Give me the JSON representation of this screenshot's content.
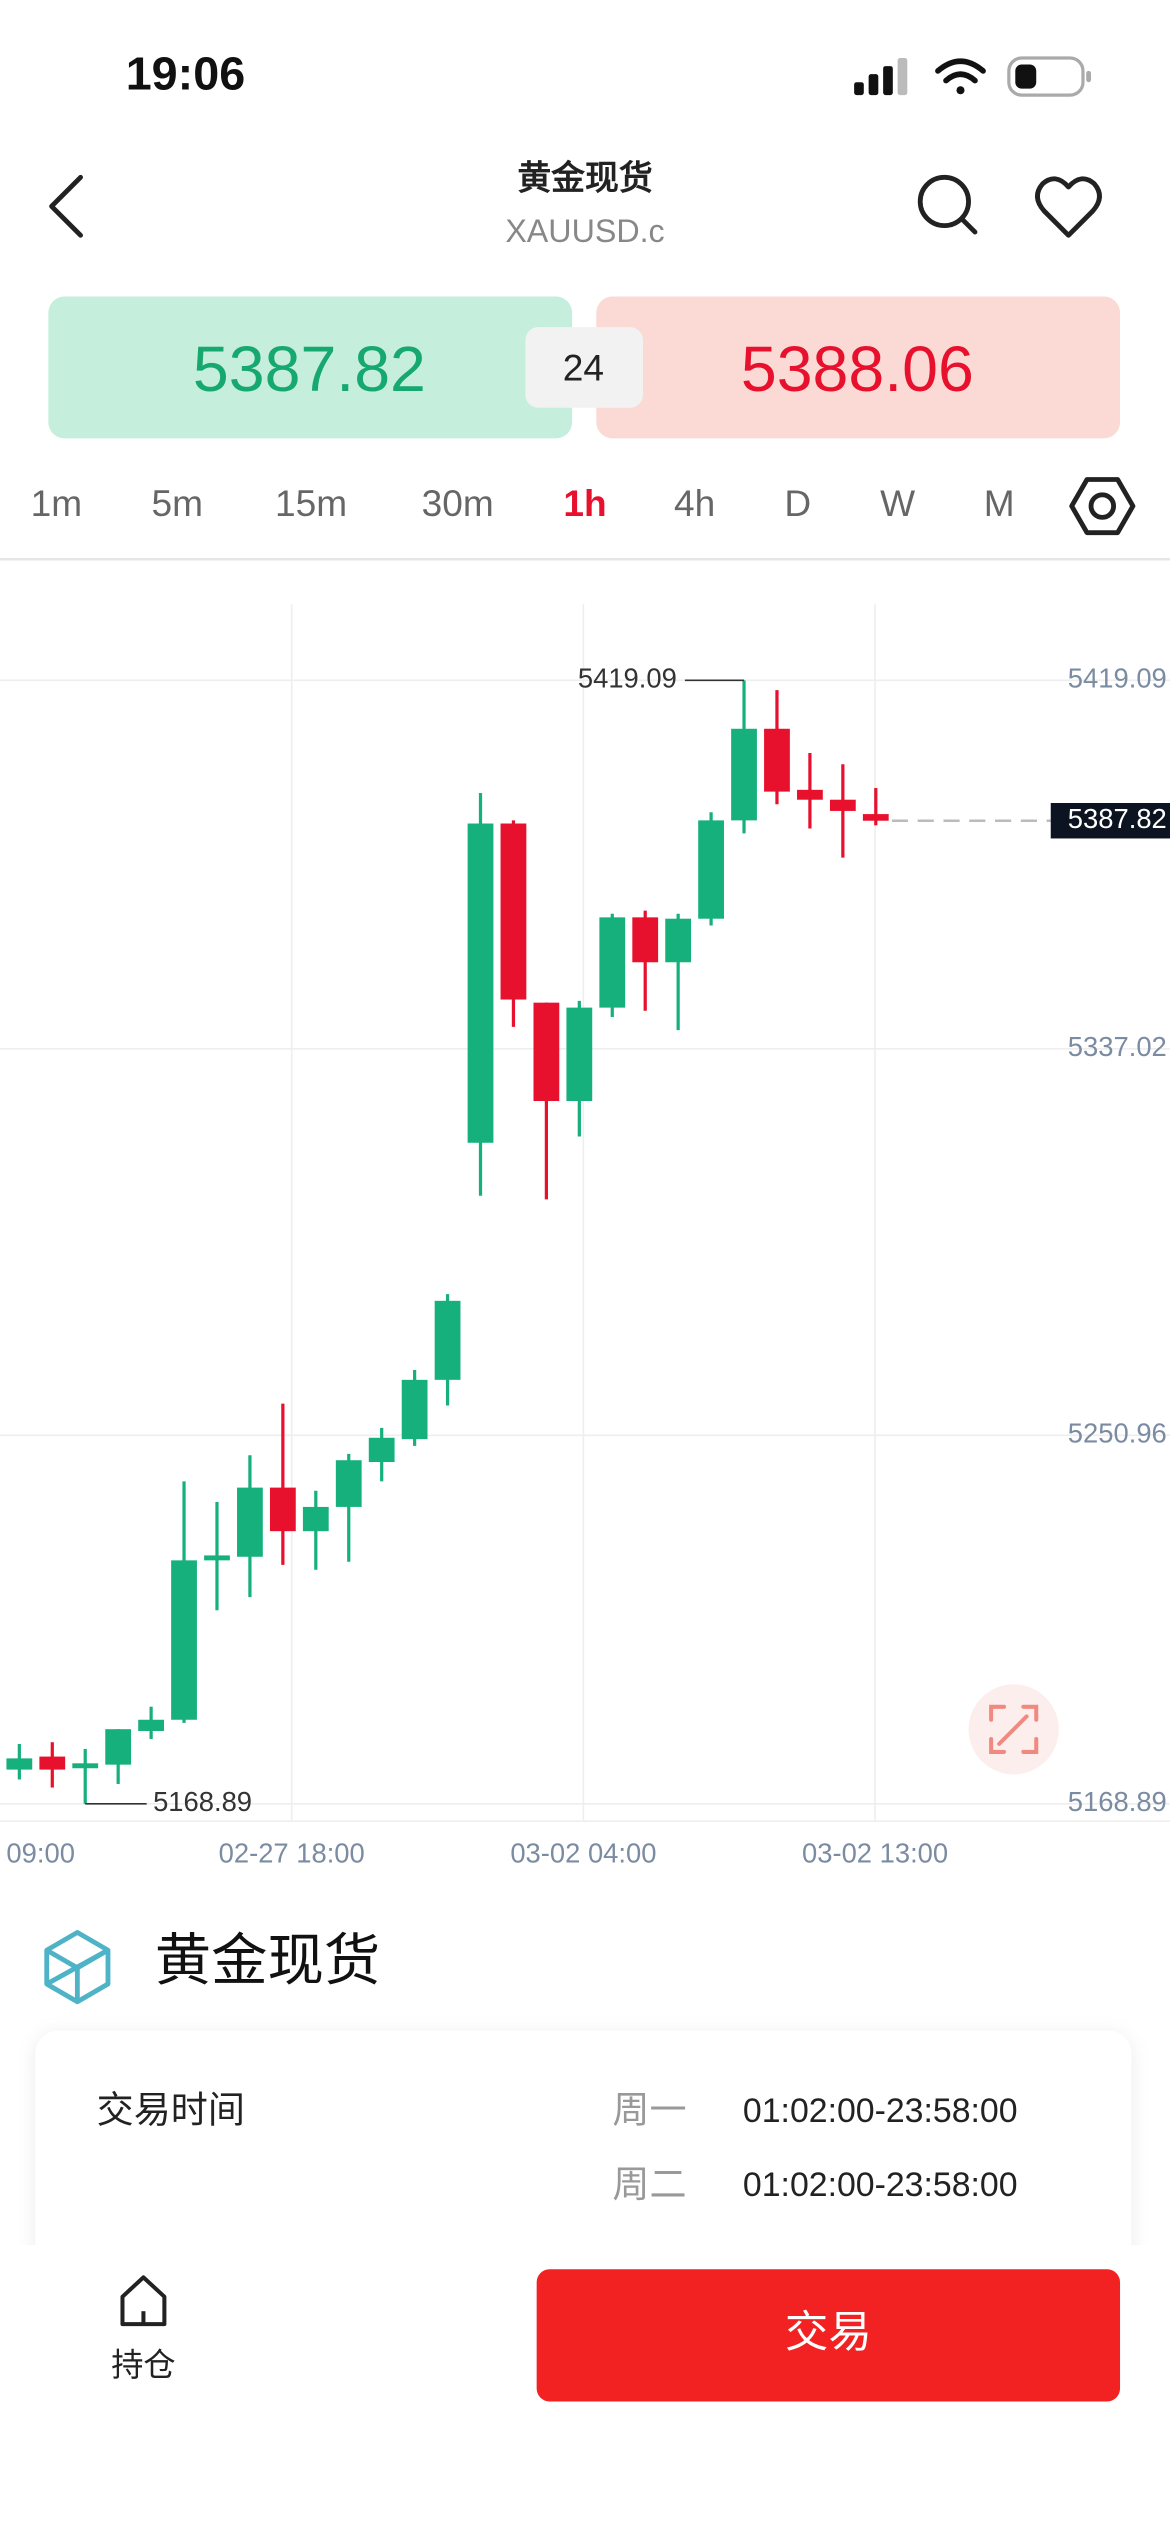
{
  "status_bar": {
    "time": "19:06"
  },
  "header": {
    "title": "黄金现货",
    "subtitle": "XAUUSD.c"
  },
  "quote": {
    "bid": 5387.82,
    "spread": 24,
    "ask": 5388.06
  },
  "timeframes": {
    "items": [
      "1m",
      "5m",
      "15m",
      "30m",
      "1h",
      "4h",
      "D",
      "W",
      "M"
    ],
    "active": "1h"
  },
  "chart_data": {
    "type": "candlestick",
    "candles": [
      {
        "open": 5176.5,
        "high": 5182.2,
        "low": 5174.3,
        "close": 5179.0
      },
      {
        "open": 5179.4,
        "high": 5182.6,
        "low": 5172.5,
        "close": 5176.5
      },
      {
        "open": 5176.8,
        "high": 5181.1,
        "low": 5168.89,
        "close": 5177.9
      },
      {
        "open": 5177.6,
        "high": 5185.5,
        "low": 5173.3,
        "close": 5185.5
      },
      {
        "open": 5185.1,
        "high": 5190.5,
        "low": 5183.3,
        "close": 5187.6
      },
      {
        "open": 5187.6,
        "high": 5240.7,
        "low": 5186.9,
        "close": 5223.1
      },
      {
        "open": 5223.1,
        "high": 5236.1,
        "low": 5212.0,
        "close": 5224.2
      },
      {
        "open": 5223.9,
        "high": 5246.5,
        "low": 5214.9,
        "close": 5239.3
      },
      {
        "open": 5239.3,
        "high": 5258.0,
        "low": 5222.1,
        "close": 5229.6
      },
      {
        "open": 5229.6,
        "high": 5238.6,
        "low": 5221.0,
        "close": 5235.0
      },
      {
        "open": 5235.0,
        "high": 5246.8,
        "low": 5222.8,
        "close": 5245.4
      },
      {
        "open": 5245.0,
        "high": 5252.6,
        "low": 5240.7,
        "close": 5250.4
      },
      {
        "open": 5250.1,
        "high": 5265.5,
        "low": 5248.6,
        "close": 5263.3
      },
      {
        "open": 5263.3,
        "high": 5282.4,
        "low": 5257.6,
        "close": 5280.9
      },
      {
        "open": 5316.1,
        "high": 5394.0,
        "low": 5304.3,
        "close": 5387.2
      },
      {
        "open": 5387.2,
        "high": 5387.9,
        "low": 5341.9,
        "close": 5348.0
      },
      {
        "open": 5347.3,
        "high": 5347.3,
        "low": 5303.5,
        "close": 5325.4
      },
      {
        "open": 5325.4,
        "high": 5347.7,
        "low": 5317.5,
        "close": 5346.2
      },
      {
        "open": 5346.2,
        "high": 5367.1,
        "low": 5344.1,
        "close": 5366.3
      },
      {
        "open": 5366.3,
        "high": 5367.8,
        "low": 5345.5,
        "close": 5356.3
      },
      {
        "open": 5356.3,
        "high": 5367.1,
        "low": 5341.2,
        "close": 5366.0
      },
      {
        "open": 5366.0,
        "high": 5389.7,
        "low": 5364.5,
        "close": 5387.9
      },
      {
        "open": 5387.9,
        "high": 5419.09,
        "low": 5385.0,
        "close": 5408.3
      },
      {
        "open": 5408.3,
        "high": 5416.9,
        "low": 5391.5,
        "close": 5394.3
      },
      {
        "open": 5394.7,
        "high": 5402.9,
        "low": 5386.1,
        "close": 5392.5
      },
      {
        "open": 5392.5,
        "high": 5400.4,
        "low": 5379.6,
        "close": 5390.0
      },
      {
        "open": 5389.3,
        "high": 5395.1,
        "low": 5386.8,
        "close": 5387.82
      }
    ],
    "x_labels": [
      "09:00",
      "02-27 18:00",
      "03-02 04:00",
      "03-02 13:00"
    ],
    "ylim": [
      5165,
      5436
    ],
    "yticks": [
      5168.89,
      5250.96,
      5337.02,
      5419.09
    ],
    "high_label": 5419.09,
    "low_label": 5168.89,
    "last_price": 5387.82,
    "up_color": "#16b07c",
    "down_color": "#e8112d",
    "grid": true
  },
  "instrument": {
    "name": "黄金现货"
  },
  "trading_hours": {
    "label": "交易时间",
    "rows": [
      [
        "周一",
        "01:02:00-23:58:00"
      ],
      [
        "周二",
        "01:02:00-23:58:00"
      ]
    ]
  },
  "bottom_bar": {
    "positions": "持仓",
    "trade": "交易"
  }
}
